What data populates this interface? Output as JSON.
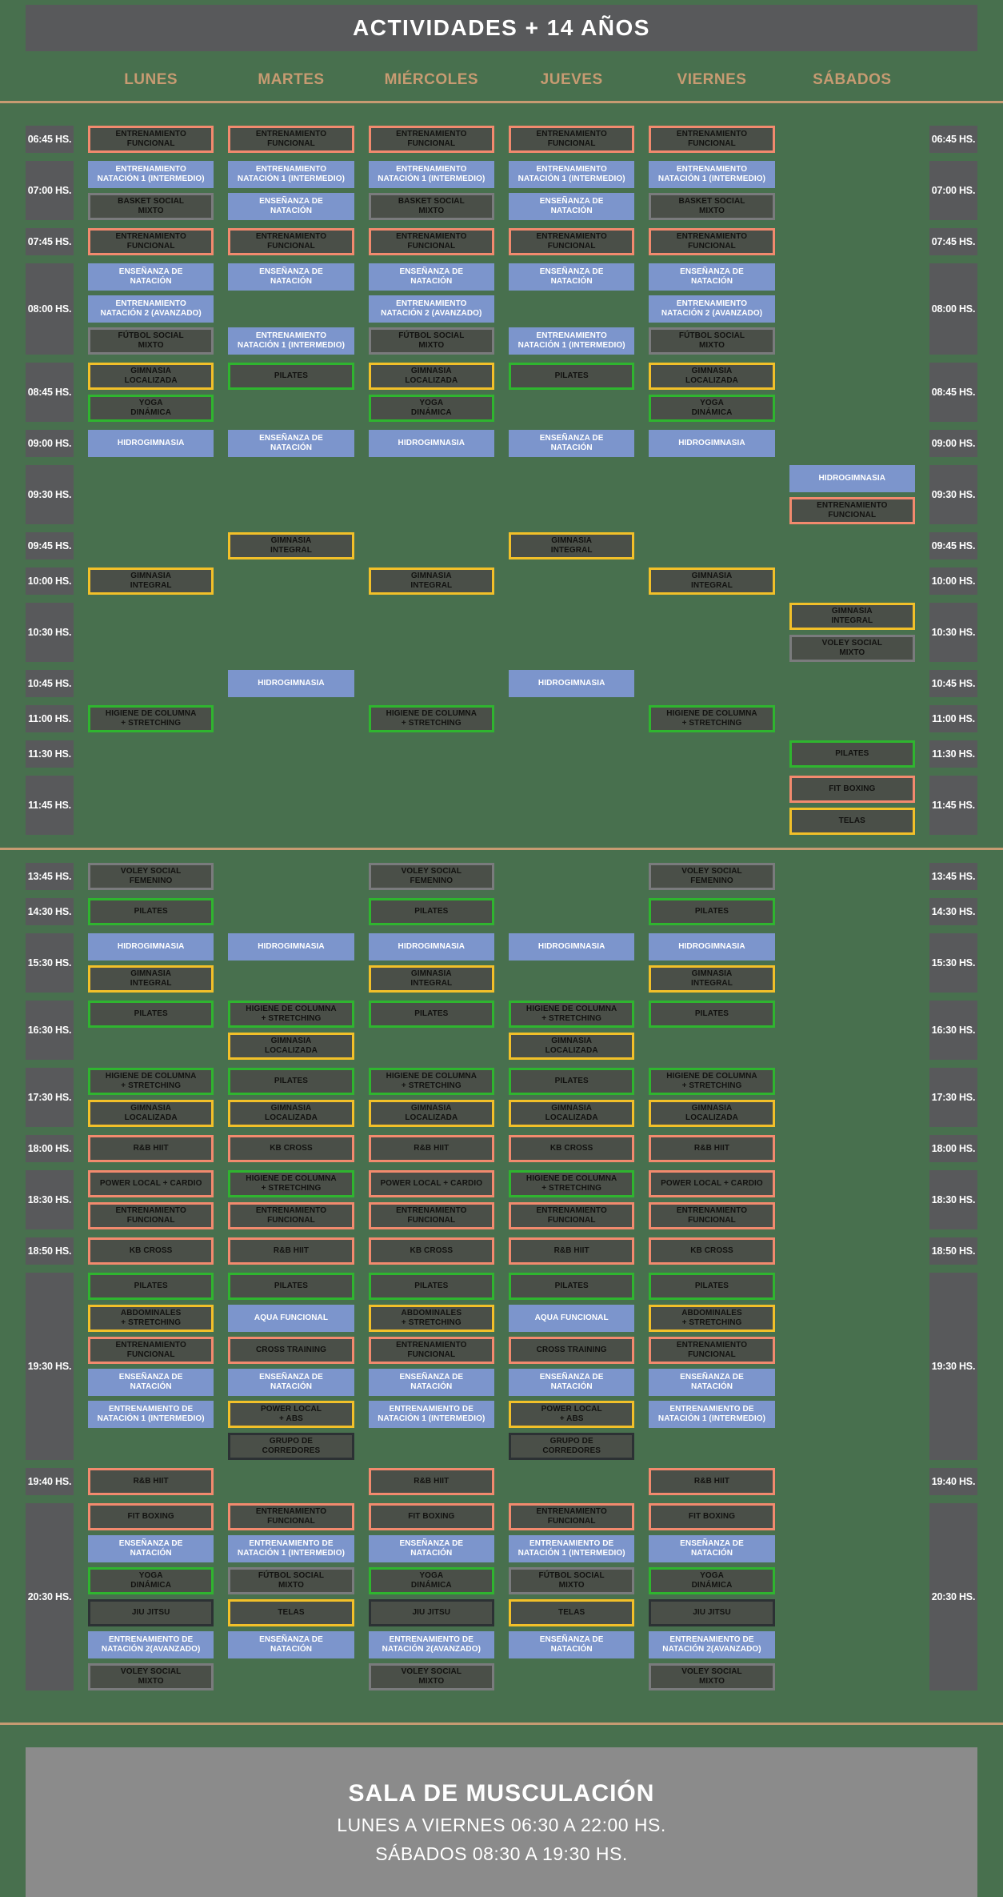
{
  "header": {
    "title": "ACTIVIDADES + 14 AÑOS"
  },
  "days": [
    "LUNES",
    "MARTES",
    "MIÉRCOLES",
    "JUEVES",
    "VIERNES",
    "SÁBADOS"
  ],
  "colors": {
    "background": "#48704E",
    "panel_gray": "#58595B",
    "accent_tan": "#C79B72",
    "footer_gray": "#8B8B8B",
    "cell_fill_dark": "#4A4F48",
    "cell_text_dark": "#121210",
    "type_orange": "#F28A6E",
    "type_blue": "#7C95CC",
    "type_green": "#2FB52F",
    "type_yellow": "#F2C029",
    "type_gray": "#7A7B7D",
    "type_dark": "#2C3134"
  },
  "activities": {
    "ef": {
      "label": "ENTRENAMIENTO\nFUNCIONAL",
      "type": "orange"
    },
    "en1": {
      "label": "ENTRENAMIENTO\nNATACIÓN 1 (INTERMEDIO)",
      "type": "blue"
    },
    "basket": {
      "label": "BASKET SOCIAL\nMIXTO",
      "type": "gray"
    },
    "ens": {
      "label": "ENSEÑANZA DE\nNATACIÓN",
      "type": "blue"
    },
    "en2": {
      "label": "ENTRENAMIENTO\nNATACIÓN 2 (AVANZADO)",
      "type": "blue"
    },
    "futbol": {
      "label": "FÚTBOL SOCIAL\nMIXTO",
      "type": "gray"
    },
    "gloc": {
      "label": "GIMNASIA\nLOCALIZADA",
      "type": "yellow"
    },
    "pilates": {
      "label": "PILATES",
      "type": "green"
    },
    "yoga": {
      "label": "YOGA\nDINÁMICA",
      "type": "green"
    },
    "hidro": {
      "label": "HIDROGIMNASIA",
      "type": "blue"
    },
    "gint": {
      "label": "GIMNASIA\nINTEGRAL",
      "type": "yellow"
    },
    "voleym": {
      "label": "VOLEY SOCIAL\nMIXTO",
      "type": "gray"
    },
    "higiene": {
      "label": "HIGIENE DE COLUMNA\n+ STRETCHING",
      "type": "green"
    },
    "fitbox": {
      "label": "FIT BOXING",
      "type": "orange"
    },
    "telas": {
      "label": "TELAS",
      "type": "yellow"
    },
    "voleyf": {
      "label": "VOLEY SOCIAL\nFEMENINO",
      "type": "gray"
    },
    "rbhiit": {
      "label": "R&B HIIT",
      "type": "orange"
    },
    "kbcross": {
      "label": "KB CROSS",
      "type": "orange"
    },
    "plcardio": {
      "label": "POWER LOCAL + CARDIO",
      "type": "orange"
    },
    "abdo": {
      "label": "ABDOMINALES\n+ STRETCHING",
      "type": "yellow"
    },
    "aqua": {
      "label": "AQUA FUNCIONAL",
      "type": "blue"
    },
    "crosst": {
      "label": "CROSS TRAINING",
      "type": "orange"
    },
    "edn1": {
      "label": "ENTRENAMIENTO DE\nNATACIÓN 1 (INTERMEDIO)",
      "type": "blue"
    },
    "plabs": {
      "label": "POWER LOCAL\n+ ABS",
      "type": "yellow"
    },
    "grupo": {
      "label": "GRUPO DE\nCORREDORES",
      "type": "dark"
    },
    "jiu": {
      "label": "JIU JITSU",
      "type": "dark"
    },
    "edn2": {
      "label": "ENTRENAMIENTO DE\nNATACIÓN 2(AVANZADO)",
      "type": "blue"
    }
  },
  "sessions": [
    {
      "name": "morning",
      "groups": [
        {
          "time": "06:45 HS.",
          "rows": [
            [
              "ef",
              "ef",
              "ef",
              "ef",
              "ef",
              null
            ]
          ]
        },
        {
          "time": "07:00 HS.",
          "rows": [
            [
              "en1",
              "en1",
              "en1",
              "en1",
              "en1",
              null
            ],
            [
              "basket",
              "ens",
              "basket",
              "ens",
              "basket",
              null
            ]
          ]
        },
        {
          "time": "07:45 HS.",
          "rows": [
            [
              "ef",
              "ef",
              "ef",
              "ef",
              "ef",
              null
            ]
          ]
        },
        {
          "time": "08:00 HS.",
          "rows": [
            [
              "ens",
              "ens",
              "ens",
              "ens",
              "ens",
              null
            ],
            [
              "en2",
              null,
              "en2",
              null,
              "en2",
              null
            ],
            [
              "futbol",
              "en1",
              "futbol",
              "en1",
              "futbol",
              null
            ]
          ]
        },
        {
          "time": "08:45 HS.",
          "rows": [
            [
              "gloc",
              "pilates",
              "gloc",
              "pilates",
              "gloc",
              null
            ],
            [
              "yoga",
              null,
              "yoga",
              null,
              "yoga",
              null
            ]
          ]
        },
        {
          "time": "09:00 HS.",
          "rows": [
            [
              "hidro",
              "ens",
              "hidro",
              "ens",
              "hidro",
              null
            ]
          ]
        },
        {
          "time": "09:30 HS.",
          "rows": [
            [
              null,
              null,
              null,
              null,
              null,
              "hidro"
            ],
            [
              null,
              null,
              null,
              null,
              null,
              "ef"
            ]
          ]
        },
        {
          "time": "09:45 HS.",
          "rows": [
            [
              null,
              "gint",
              null,
              "gint",
              null,
              null
            ]
          ]
        },
        {
          "time": "10:00 HS.",
          "rows": [
            [
              "gint",
              null,
              "gint",
              null,
              "gint",
              null
            ]
          ]
        },
        {
          "time": "10:30 HS.",
          "rows": [
            [
              null,
              null,
              null,
              null,
              null,
              "gint"
            ],
            [
              null,
              null,
              null,
              null,
              null,
              "voleym"
            ]
          ]
        },
        {
          "time": "10:45 HS.",
          "rows": [
            [
              null,
              "hidro",
              null,
              "hidro",
              null,
              null
            ]
          ]
        },
        {
          "time": "11:00 HS.",
          "rows": [
            [
              "higiene",
              null,
              "higiene",
              null,
              "higiene",
              null
            ]
          ]
        },
        {
          "time": "11:30 HS.",
          "rows": [
            [
              null,
              null,
              null,
              null,
              null,
              "pilates"
            ]
          ]
        },
        {
          "time": "11:45 HS.",
          "rows": [
            [
              null,
              null,
              null,
              null,
              null,
              "fitbox"
            ],
            [
              null,
              null,
              null,
              null,
              null,
              "telas"
            ]
          ]
        }
      ]
    },
    {
      "name": "afternoon",
      "groups": [
        {
          "time": "13:45 HS.",
          "rows": [
            [
              "voleyf",
              null,
              "voleyf",
              null,
              "voleyf",
              null
            ]
          ]
        },
        {
          "time": "14:30 HS.",
          "rows": [
            [
              "pilates",
              null,
              "pilates",
              null,
              "pilates",
              null
            ]
          ]
        },
        {
          "time": "15:30 HS.",
          "rows": [
            [
              "hidro",
              "hidro",
              "hidro",
              "hidro",
              "hidro",
              null
            ],
            [
              "gint",
              null,
              "gint",
              null,
              "gint",
              null
            ]
          ]
        },
        {
          "time": "16:30 HS.",
          "rows": [
            [
              "pilates",
              "higiene",
              "pilates",
              "higiene",
              "pilates",
              null
            ],
            [
              null,
              "gloc",
              null,
              "gloc",
              null,
              null
            ]
          ]
        },
        {
          "time": "17:30 HS.",
          "rows": [
            [
              "higiene",
              "pilates",
              "higiene",
              "pilates",
              "higiene",
              null
            ],
            [
              "gloc",
              "gloc",
              "gloc",
              "gloc",
              "gloc",
              null
            ]
          ]
        },
        {
          "time": "18:00 HS.",
          "rows": [
            [
              "rbhiit",
              "kbcross",
              "rbhiit",
              "kbcross",
              "rbhiit",
              null
            ]
          ]
        },
        {
          "time": "18:30 HS.",
          "rows": [
            [
              "plcardio",
              "higiene",
              "plcardio",
              "higiene",
              "plcardio",
              null
            ],
            [
              "ef",
              "ef",
              "ef",
              "ef",
              "ef",
              null
            ]
          ]
        },
        {
          "time": "18:50 HS.",
          "rows": [
            [
              "kbcross",
              "rbhiit",
              "kbcross",
              "rbhiit",
              "kbcross",
              null
            ]
          ]
        },
        {
          "time": "19:30 HS.",
          "rows": [
            [
              "pilates",
              "pilates",
              "pilates",
              "pilates",
              "pilates",
              null
            ],
            [
              "abdo",
              "aqua",
              "abdo",
              "aqua",
              "abdo",
              null
            ],
            [
              "ef",
              "crosst",
              "ef",
              "crosst",
              "ef",
              null
            ],
            [
              "ens",
              "ens",
              "ens",
              "ens",
              "ens",
              null
            ],
            [
              "edn1",
              "plabs",
              "edn1",
              "plabs",
              "edn1",
              null
            ],
            [
              null,
              "grupo",
              null,
              "grupo",
              null,
              null
            ]
          ]
        },
        {
          "time": "19:40 HS.",
          "rows": [
            [
              "rbhiit",
              null,
              "rbhiit",
              null,
              "rbhiit",
              null
            ]
          ]
        },
        {
          "time": "20:30 HS.",
          "rows": [
            [
              "fitbox",
              "ef",
              "fitbox",
              "ef",
              "fitbox",
              null
            ],
            [
              "ens",
              "edn1",
              "ens",
              "edn1",
              "ens",
              null
            ],
            [
              "yoga",
              "futbol",
              "yoga",
              "futbol",
              "yoga",
              null
            ],
            [
              "jiu",
              "telas",
              "jiu",
              "telas",
              "jiu",
              null
            ],
            [
              "edn2",
              "ens",
              "edn2",
              "ens",
              "edn2",
              null
            ],
            [
              "voleym",
              null,
              "voleym",
              null,
              "voleym",
              null
            ]
          ]
        }
      ]
    }
  ],
  "footer": {
    "title": "SALA DE MUSCULACIÓN",
    "hours_weekdays": "LUNES A VIERNES 06:30 A 22:00 HS.",
    "hours_saturday": "SÁBADOS 08:30 A 19:30 HS."
  }
}
